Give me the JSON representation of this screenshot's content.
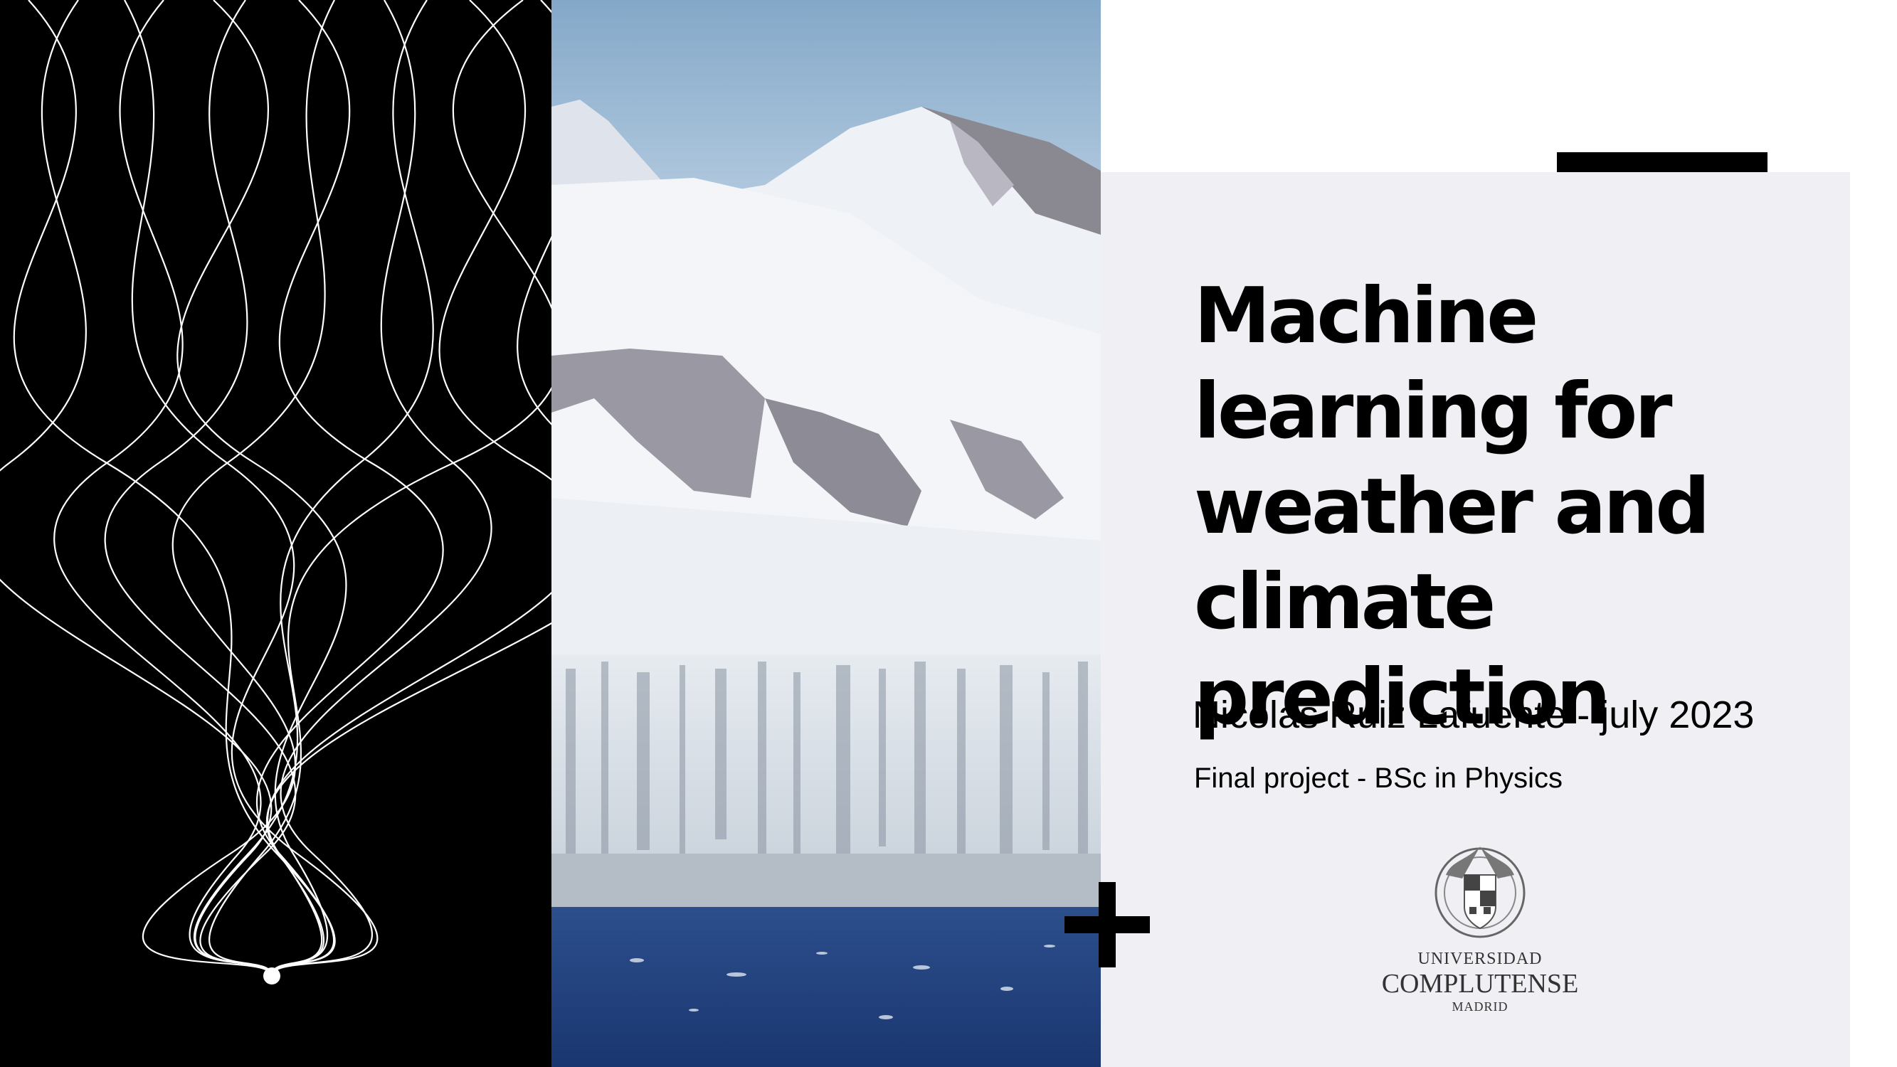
{
  "slide": {
    "title": "Machine learning for weather and climate prediction",
    "author_line": "Nicolás Ruiz Lafuente - july 2023",
    "project_line": "Final project - BSc in Physics",
    "logo": {
      "line1": "UNIVERSIDAD",
      "line2": "COMPLUTENSE",
      "line3": "MADRID",
      "icon": "university-crest-icon"
    },
    "colors": {
      "left_panel": "#000000",
      "card": "#f0eff3",
      "text": "#000000"
    }
  }
}
